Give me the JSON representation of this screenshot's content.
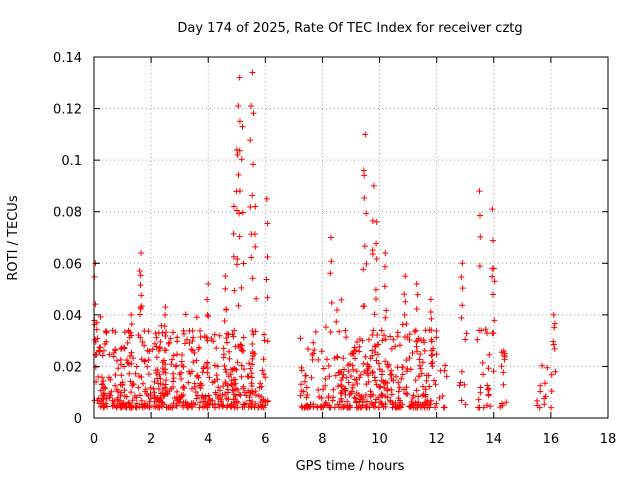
{
  "chart_data": {
    "type": "scatter",
    "title": "Day 174 of 2025, Rate Of TEC Index for receiver cztg",
    "xlabel": "GPS time / hours",
    "ylabel": "ROTI / TECUs",
    "xlim": [
      0,
      18
    ],
    "ylim": [
      0,
      0.14
    ],
    "xticks": [
      0,
      2,
      4,
      6,
      8,
      10,
      12,
      14,
      16,
      18
    ],
    "yticks": [
      0,
      0.02,
      0.04,
      0.06,
      0.08,
      0.1,
      0.12,
      0.14
    ],
    "xtick_labels": [
      "0",
      "2",
      "4",
      "6",
      "8",
      "10",
      "12",
      "14",
      "16",
      "18"
    ],
    "ytick_labels": [
      "0",
      "0.02",
      "0.04",
      "0.06",
      "0.08",
      "0.1",
      "0.12",
      "0.14"
    ],
    "grid": true,
    "marker": "plus",
    "color": "#ff0000",
    "series": [
      {
        "name": "ROTI",
        "clusters": [
          {
            "x": [
              0.0,
              6.1
            ],
            "density": 1.0
          },
          {
            "x": [
              7.2,
              8.5
            ],
            "density": 0.6
          },
          {
            "x": [
              8.5,
              12.0
            ],
            "density": 1.0
          },
          {
            "x": [
              12.1,
              12.4
            ],
            "density": 0.3
          },
          {
            "x": [
              12.8,
              13.1
            ],
            "density": 0.3
          },
          {
            "x": [
              13.4,
              14.0
            ],
            "density": 0.4
          },
          {
            "x": [
              14.2,
              14.5
            ],
            "density": 0.3
          },
          {
            "x": [
              15.5,
              15.9
            ],
            "density": 0.3
          },
          {
            "x": [
              16.0,
              16.2
            ],
            "density": 0.3
          }
        ],
        "peaks": [
          {
            "x": 0.05,
            "y": 0.06
          },
          {
            "x": 0.1,
            "y": 0.037
          },
          {
            "x": 1.3,
            "y": 0.04
          },
          {
            "x": 1.6,
            "y": 0.057
          },
          {
            "x": 1.65,
            "y": 0.064
          },
          {
            "x": 2.5,
            "y": 0.043
          },
          {
            "x": 4.0,
            "y": 0.052
          },
          {
            "x": 4.6,
            "y": 0.055
          },
          {
            "x": 4.9,
            "y": 0.082
          },
          {
            "x": 5.0,
            "y": 0.104
          },
          {
            "x": 5.05,
            "y": 0.121
          },
          {
            "x": 5.1,
            "y": 0.132
          },
          {
            "x": 5.2,
            "y": 0.113
          },
          {
            "x": 5.5,
            "y": 0.121
          },
          {
            "x": 5.55,
            "y": 0.134
          },
          {
            "x": 5.65,
            "y": 0.082
          },
          {
            "x": 6.05,
            "y": 0.085
          },
          {
            "x": 8.3,
            "y": 0.07
          },
          {
            "x": 9.5,
            "y": 0.11
          },
          {
            "x": 9.45,
            "y": 0.096
          },
          {
            "x": 9.8,
            "y": 0.09
          },
          {
            "x": 9.9,
            "y": 0.076
          },
          {
            "x": 10.2,
            "y": 0.064
          },
          {
            "x": 10.9,
            "y": 0.055
          },
          {
            "x": 11.3,
            "y": 0.052
          },
          {
            "x": 11.8,
            "y": 0.046
          },
          {
            "x": 12.9,
            "y": 0.06
          },
          {
            "x": 13.5,
            "y": 0.088
          },
          {
            "x": 13.95,
            "y": 0.081
          },
          {
            "x": 14.0,
            "y": 0.058
          },
          {
            "x": 14.35,
            "y": 0.026
          },
          {
            "x": 16.1,
            "y": 0.04
          }
        ]
      }
    ]
  }
}
